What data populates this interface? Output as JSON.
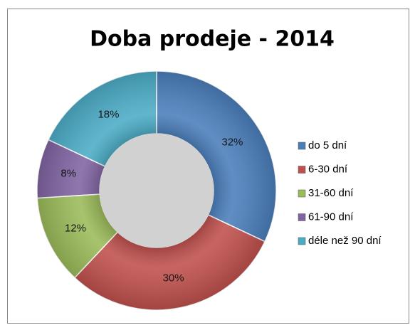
{
  "chart_data": {
    "type": "donut",
    "title": "Doba prodeje - 2014",
    "categories": [
      "do 5 dní",
      "6-30 dní",
      "31-60 dní",
      "61-90 dní",
      "déle než 90 dní"
    ],
    "values": [
      32,
      30,
      12,
      8,
      18
    ],
    "value_labels": [
      "32%",
      "30%",
      "12%",
      "8%",
      "18%"
    ],
    "colors": [
      "#4a7ebb",
      "#c0504d",
      "#9bbb59",
      "#8064a2",
      "#4bacc6"
    ],
    "legend": "right"
  }
}
